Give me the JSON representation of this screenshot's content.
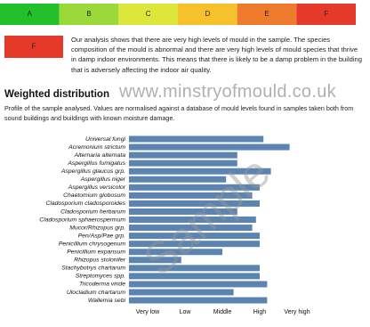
{
  "grades": [
    {
      "label": "A",
      "color": "#22c02a"
    },
    {
      "label": "B",
      "color": "#9bd93a"
    },
    {
      "label": "C",
      "color": "#dde63a"
    },
    {
      "label": "D",
      "color": "#f6c12b"
    },
    {
      "label": "E",
      "color": "#ee7b2c"
    },
    {
      "label": "F",
      "color": "#e5392a"
    }
  ],
  "result": {
    "label": "F",
    "color": "#e5392a"
  },
  "summary": "Our analysis shows that there are very high levels of mould in the sample. The species composition of the mould is abnormal and there are very high levels of mould species that thrive in damp indoor environments. This means that there is likely to be a damp problem in the building that is adversely affecting the indoor air quality.",
  "section_title": "Weighted distribution",
  "watermark_url": "www.minstryofmould.co.uk",
  "description": "Profile of the sample analysed. Values are normalised against a database of mould levels found in samples taken both from sound buildings and buildings with known moisture damage.",
  "watermark": "Sample",
  "chart_data": {
    "type": "hbar",
    "categories": [
      "Universal fungi",
      "Acremonium strictum",
      "Alternaria alternata",
      "Aspergillus fumigatus",
      "Aspergillus glaucus grp.",
      "Aspergillus niger",
      "Aspergillus versicolor",
      "Chaetomium globosum",
      "Cladosporium cladosporoides",
      "Cladosporium herbarum",
      "Cladosporium sphaerospermum",
      "Mucor/Rhizopus grp.",
      "Pen/Asp/Pae grp.",
      "Penicillium chrysogenum",
      "Penicillium expansum",
      "Rhizopus stolonifer",
      "Stachybotrys chartarum",
      "Streptomyces spp.",
      "Tricoderma viride",
      "Ulocladium chartarum",
      "Wallemia sebi"
    ],
    "values": [
      4.1,
      4.8,
      3.4,
      3.4,
      4.3,
      3.1,
      4.0,
      3.8,
      4.0,
      3.4,
      3.9,
      3.8,
      4.0,
      4.0,
      3.0,
      1.9,
      4.0,
      4.0,
      4.2,
      3.3,
      4.2
    ],
    "color": "#5b84b1",
    "xlim": [
      0.5,
      5.5
    ],
    "xticks": [
      {
        "value": 1,
        "label": "Very low"
      },
      {
        "value": 2,
        "label": "Low"
      },
      {
        "value": 3,
        "label": "Middle"
      },
      {
        "value": 4,
        "label": "High"
      },
      {
        "value": 5,
        "label": "Very high"
      }
    ]
  }
}
